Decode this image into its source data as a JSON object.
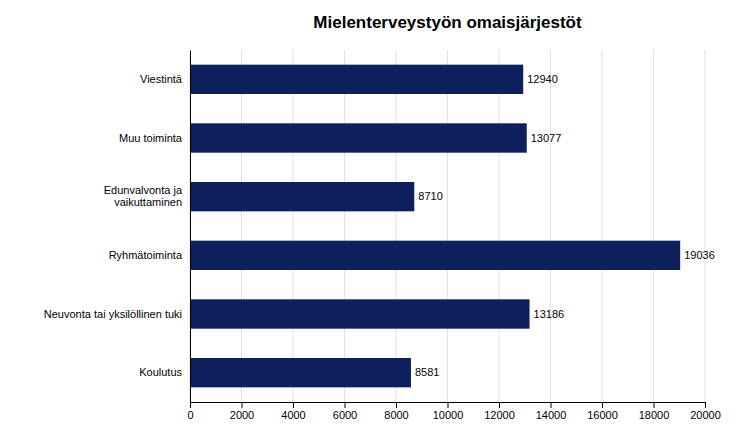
{
  "chart_data": {
    "type": "bar",
    "orientation": "horizontal",
    "title": "Mielenterveystyön omaisjärjestöt",
    "categories": [
      "Viestintä",
      "Muu toiminta",
      "Edunvalvonta ja\nvaikuttaminen",
      "Ryhmätoiminta",
      "Neuvonta tai yksilöllinen tuki",
      "Koulutus"
    ],
    "values": [
      12940,
      13077,
      8710,
      19036,
      13186,
      8581
    ],
    "color": "#0d1f5c",
    "xlim": [
      0,
      20000
    ],
    "xticks": [
      0,
      2000,
      4000,
      6000,
      8000,
      10000,
      12000,
      14000,
      16000,
      18000,
      20000
    ],
    "grid": true,
    "data_labels": true
  }
}
